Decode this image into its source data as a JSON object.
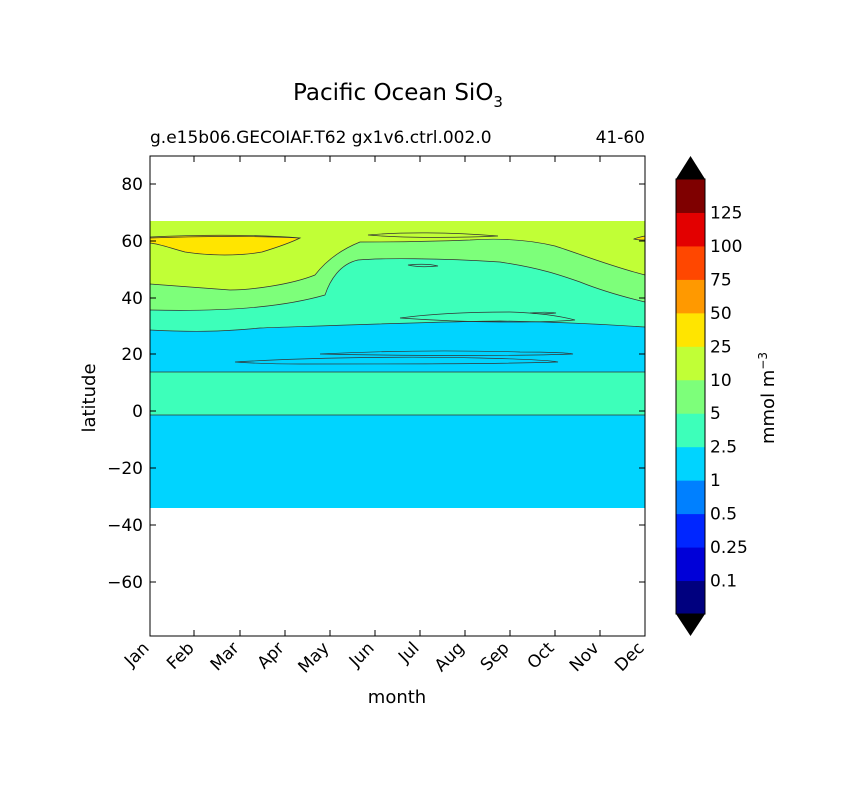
{
  "chart_data": {
    "type": "contour",
    "title": "Pacific Ocean SiO",
    "title_subscript": "3",
    "subtitle_left": "g.e15b06.GECOIAF.T62 gx1v6.ctrl.002.0",
    "subtitle_right": "41-60",
    "xlabel": "month",
    "ylabel": "latitude",
    "x_categories": [
      "Jan",
      "Feb",
      "Mar",
      "Apr",
      "May",
      "Jun",
      "Jul",
      "Aug",
      "Sep",
      "Oct",
      "Nov",
      "Dec"
    ],
    "ylim": [
      -79,
      90
    ],
    "y_ticks": [
      80,
      60,
      40,
      20,
      0,
      -20,
      -40,
      -60
    ],
    "y_tick_labels": [
      "80",
      "60",
      "40",
      "20",
      "0",
      "−20",
      "−40",
      "−60"
    ],
    "data_lat_range": [
      -34,
      67
    ],
    "colorbar": {
      "label": "mmol m",
      "label_superscript": "−3",
      "levels": [
        0,
        0.1,
        0.25,
        0.5,
        1,
        2.5,
        5,
        10,
        25,
        50,
        75,
        100,
        125,
        150
      ],
      "tick_labels": [
        "0.1",
        "0.25",
        "0.5",
        "1",
        "2.5",
        "5",
        "10",
        "25",
        "50",
        "75",
        "100",
        "125"
      ],
      "colors": [
        "#00007f",
        "#0000d8",
        "#0026ff",
        "#0080ff",
        "#00d4ff",
        "#3dffba",
        "#7dff7a",
        "#c1ff36",
        "#ffe500",
        "#ff9900",
        "#ff4700",
        "#e30000",
        "#7f0000"
      ],
      "extend_low_color": "#000000",
      "extend_high_color": "#000000"
    },
    "bands": [
      {
        "range": "1-2.5",
        "color": "#00d4ff",
        "lat_from": -34,
        "lat_to": -1.5
      },
      {
        "range": "2.5-5",
        "color": "#3dffba",
        "lat_from": -1.5,
        "lat_to": 14
      },
      {
        "range": "1-2.5",
        "color": "#00d4ff",
        "lat_from": 14,
        "lat_to": 29
      },
      {
        "range": "2.5-5",
        "color": "#3dffba",
        "lat_from": 29,
        "lat_to": 46
      },
      {
        "range": "5-10",
        "color": "#7dff7a",
        "lat_from": 36,
        "lat_to": 58
      },
      {
        "range": "10-25",
        "color": "#c1ff36",
        "lat_from": 46,
        "lat_to": 67
      },
      {
        "range": "25-50",
        "color": "#ffe500",
        "lat_from": 55,
        "lat_to": 62
      }
    ]
  }
}
